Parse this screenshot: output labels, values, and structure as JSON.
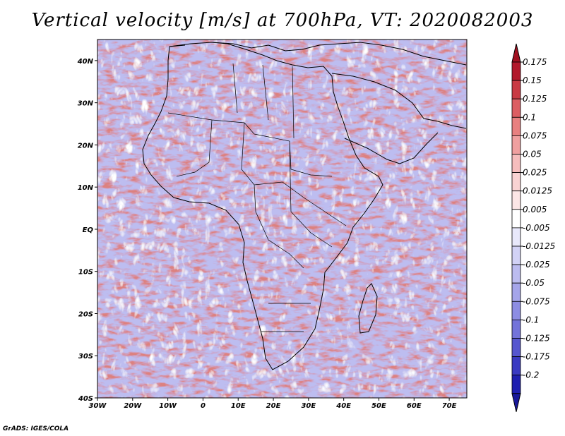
{
  "title": "Vertical velocity [m/s] at 700hPa, VT: 2020082003",
  "footer": "GrADS: IGES/COLA",
  "map": {
    "lon_range": [
      -30,
      75
    ],
    "lat_range": [
      -40,
      45
    ],
    "lat_labels": [
      {
        "value": 40,
        "text": "40N"
      },
      {
        "value": 30,
        "text": "30N"
      },
      {
        "value": 20,
        "text": "20N"
      },
      {
        "value": 10,
        "text": "10N"
      },
      {
        "value": 0,
        "text": "EQ"
      },
      {
        "value": -10,
        "text": "10S"
      },
      {
        "value": -20,
        "text": "20S"
      },
      {
        "value": -30,
        "text": "30S"
      },
      {
        "value": -40,
        "text": "40S"
      }
    ],
    "lon_labels": [
      {
        "value": -30,
        "text": "30W"
      },
      {
        "value": -20,
        "text": "20W"
      },
      {
        "value": -10,
        "text": "10W"
      },
      {
        "value": 0,
        "text": "0"
      },
      {
        "value": 10,
        "text": "10E"
      },
      {
        "value": 20,
        "text": "20E"
      },
      {
        "value": 30,
        "text": "30E"
      },
      {
        "value": 40,
        "text": "40E"
      },
      {
        "value": 50,
        "text": "50E"
      },
      {
        "value": 60,
        "text": "60E"
      },
      {
        "value": 70,
        "text": "70E"
      }
    ]
  },
  "colorbar": {
    "labels": [
      "0.175",
      "0.15",
      "0.125",
      "0.1",
      "0.075",
      "0.05",
      "0.025",
      "0.0125",
      "0.005",
      "-0.005",
      "-0.0125",
      "-0.025",
      "-0.05",
      "-0.075",
      "-0.1",
      "-0.125",
      "-0.175",
      "-0.2"
    ],
    "colors": [
      "#b2182b",
      "#c93a44",
      "#dc5e63",
      "#e88080",
      "#f0a0a0",
      "#f6bdbd",
      "#f9d3d3",
      "#fce6e6",
      "#ffffff",
      "#e8e8fb",
      "#d2d2f6",
      "#bcbcf0",
      "#a5a5ea",
      "#8d8de3",
      "#7373da",
      "#5656cf",
      "#3a3ac2",
      "#1f1fb0"
    ],
    "top_color": "#a01020",
    "bottom_color": "#18189a"
  }
}
